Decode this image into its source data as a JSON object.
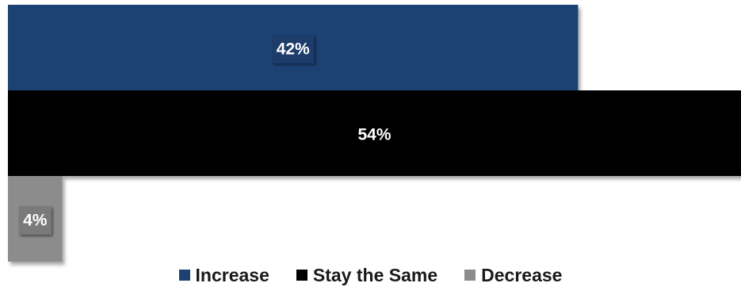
{
  "chart_data": {
    "type": "bar",
    "orientation": "horizontal",
    "title": "",
    "xlabel": "",
    "ylabel": "",
    "xlim": [
      0,
      54
    ],
    "grid": false,
    "legend_position": "bottom",
    "value_suffix": "%",
    "series": [
      {
        "name": "Increase",
        "value": 42,
        "label": "42%",
        "color": "#1c4273"
      },
      {
        "name": "Stay the Same",
        "value": 54,
        "label": "54%",
        "color": "#000000"
      },
      {
        "name": "Decrease",
        "value": 4,
        "label": "4%",
        "color": "#8c8c8c"
      }
    ]
  }
}
